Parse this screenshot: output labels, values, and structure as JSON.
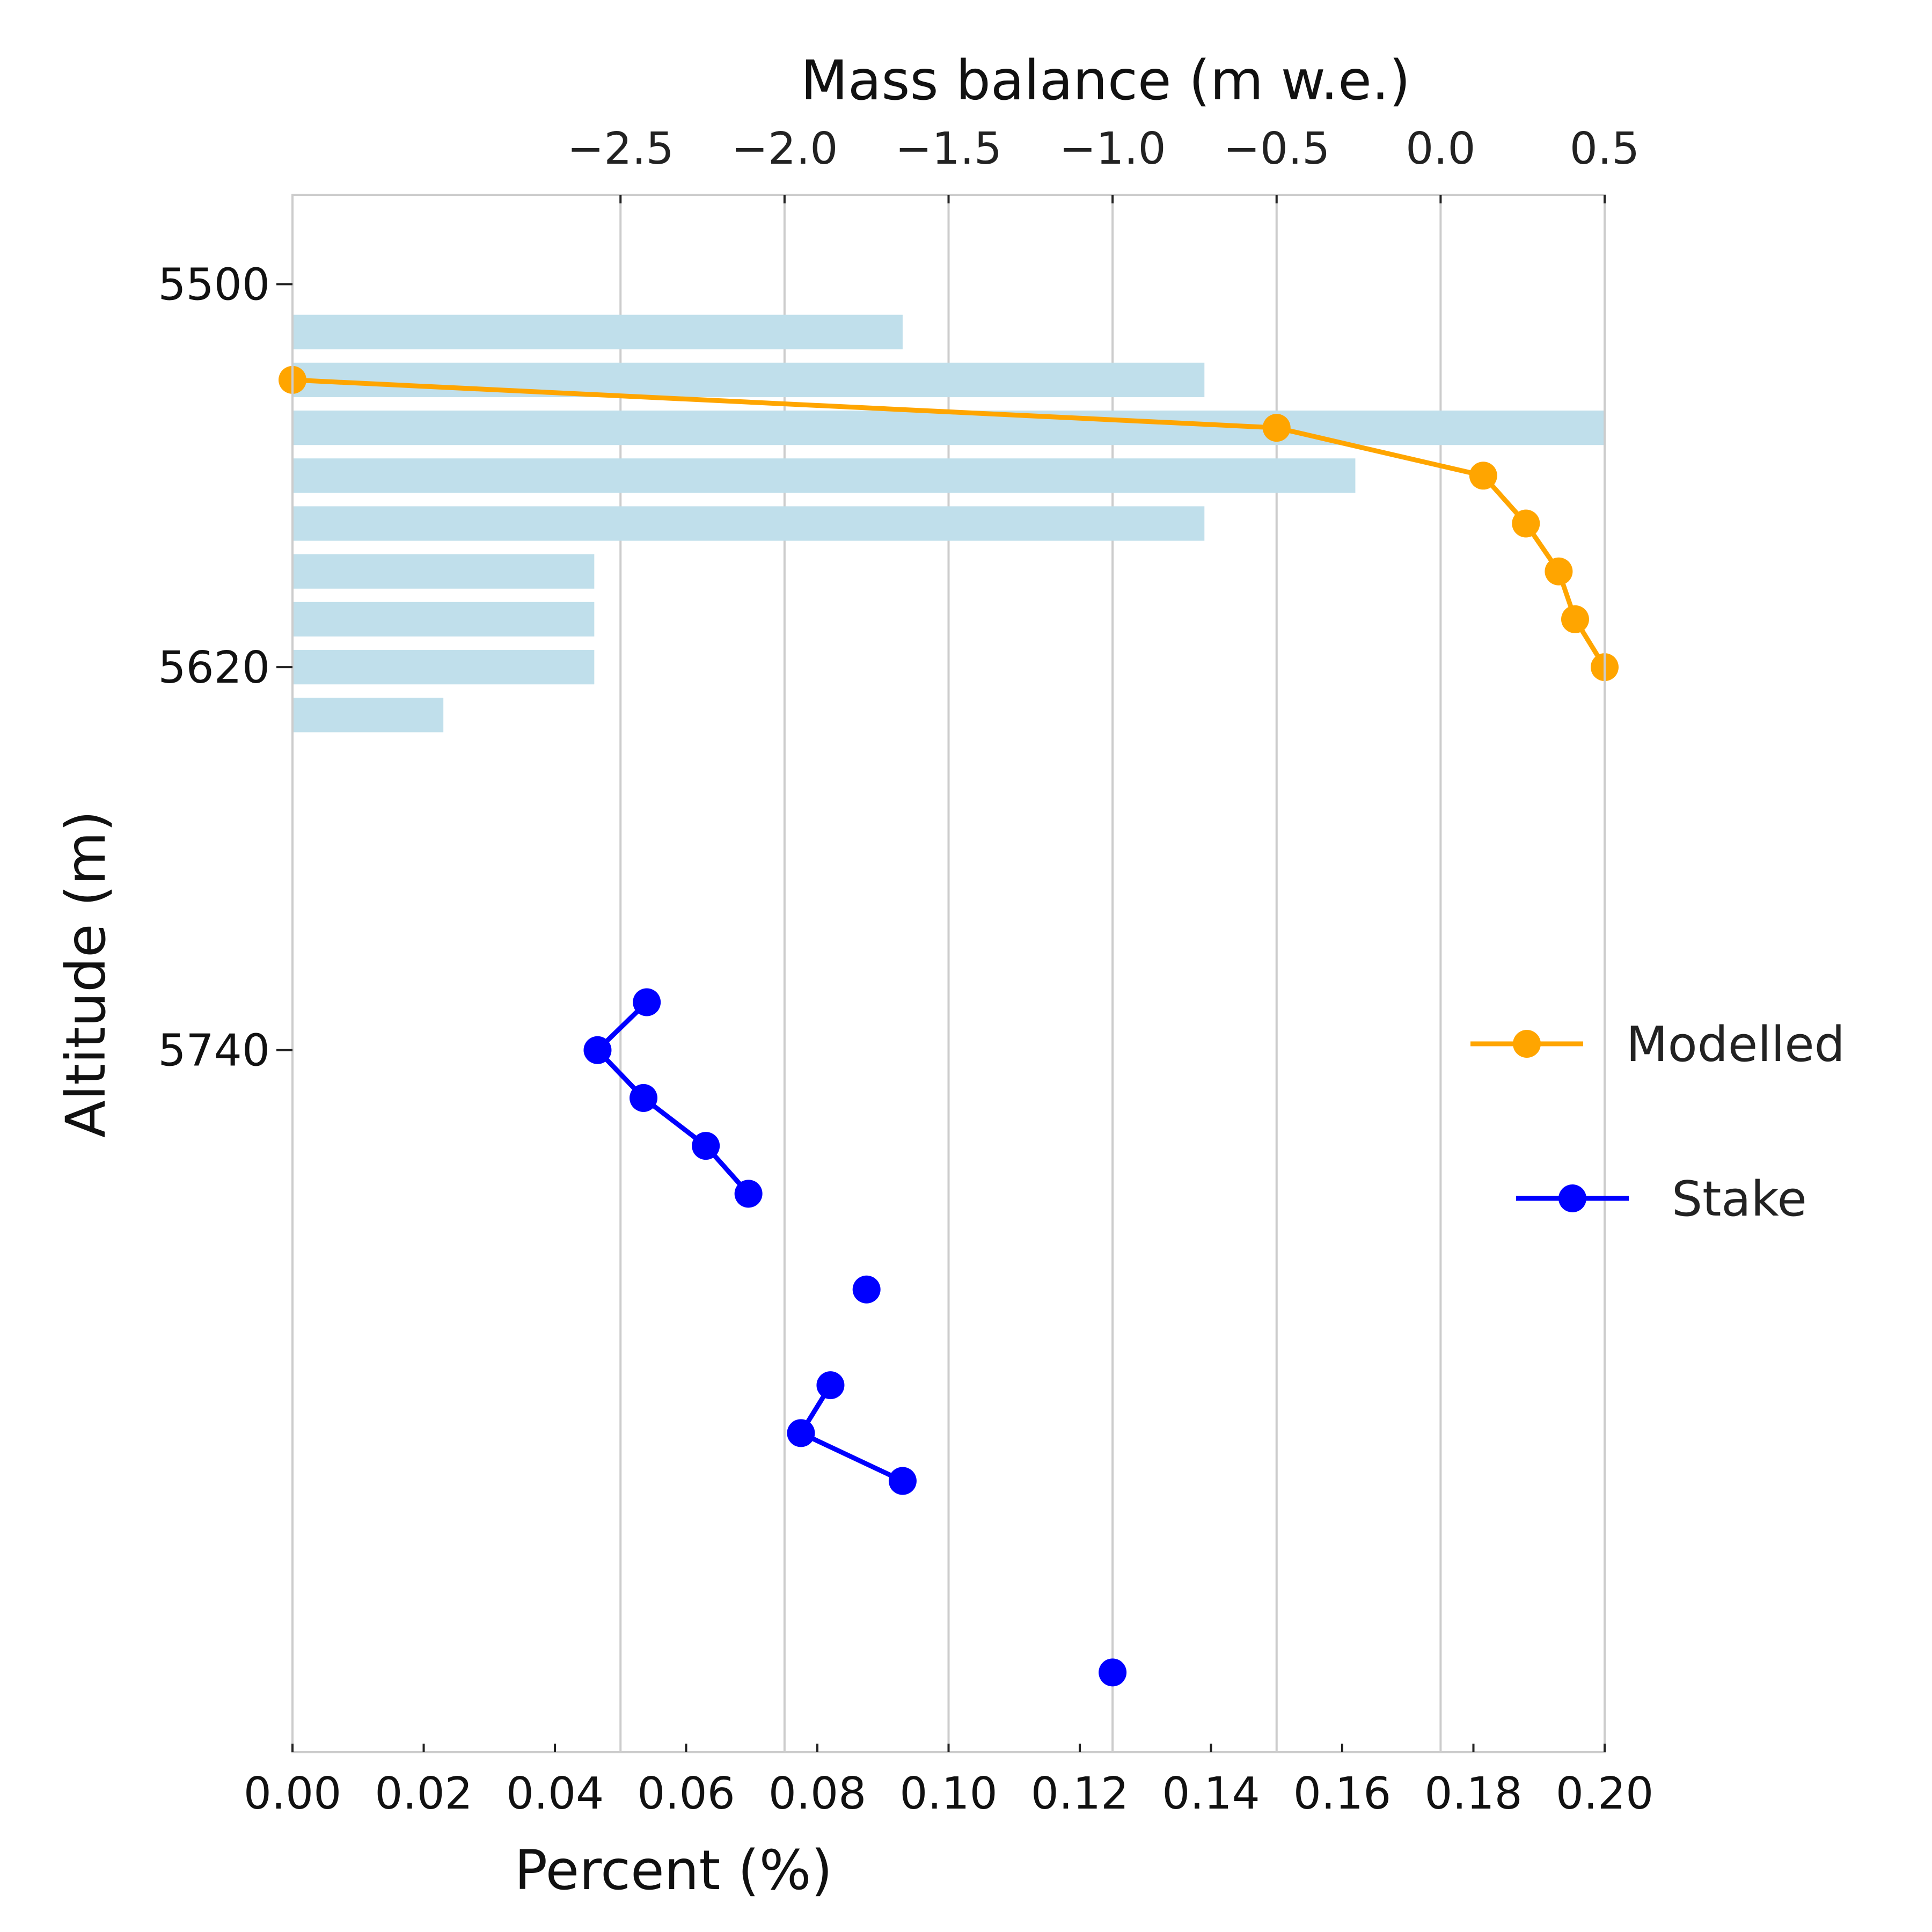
{
  "chart_data": {
    "type": "bar",
    "bottom_axis": {
      "label": "Percent (%)",
      "range": [
        0.0,
        0.2
      ],
      "ticks": [
        "0.00",
        "0.02",
        "0.04",
        "0.06",
        "0.08",
        "0.10",
        "0.12",
        "0.14",
        "0.16",
        "0.18",
        "0.20"
      ],
      "tick_values": [
        0.0,
        0.02,
        0.04,
        0.06,
        0.08,
        0.1,
        0.12,
        0.14,
        0.16,
        0.18,
        0.2
      ]
    },
    "top_axis": {
      "label": "Mass balance (m w.e.)",
      "range": [
        -3.5,
        0.5
      ],
      "ticks": [
        "−2.5",
        "−2.0",
        "−1.5",
        "−1.0",
        "−0.5",
        "0.0",
        "0.5"
      ],
      "tick_values": [
        -2.5,
        -2.0,
        -1.5,
        -1.0,
        -0.5,
        0.0,
        0.5
      ],
      "grid": true
    },
    "y_axis": {
      "label": "Altitude (m)",
      "range": [
        5472,
        5960
      ],
      "inverted": true,
      "ticks": [
        "5500",
        "5620",
        "5740"
      ],
      "tick_values": [
        5500,
        5620,
        5740
      ]
    },
    "bars": {
      "color": "#c0dfeb",
      "altitudes": [
        5515,
        5530,
        5545,
        5560,
        5575,
        5590,
        5605,
        5620,
        5635
      ],
      "values": [
        0.093,
        0.139,
        0.2,
        0.162,
        0.139,
        0.046,
        0.046,
        0.046,
        0.023
      ]
    },
    "series": [
      {
        "name": "Modelled",
        "color": "#ffa500",
        "x": [
          -3.5,
          -0.5,
          0.13,
          0.26,
          0.36,
          0.41,
          0.5
        ],
        "y": [
          5530,
          5545,
          5560,
          5575,
          5590,
          5605,
          5620
        ]
      },
      {
        "name": "Stake",
        "color": "#0000ff",
        "segments": [
          {
            "x": [
              -2.42,
              -2.57,
              -2.43,
              -2.24,
              -2.11
            ],
            "y": [
              5725,
              5740,
              5755,
              5770,
              5785
            ]
          },
          {
            "x": [
              -1.75
            ],
            "y": [
              5815
            ]
          },
          {
            "x": [
              -1.86,
              -1.95,
              -1.64
            ],
            "y": [
              5845,
              5860,
              5875
            ]
          },
          {
            "x": [
              -1.0
            ],
            "y": [
              5935
            ]
          }
        ]
      }
    ],
    "legend": {
      "placement": "center-right",
      "entries": [
        "Modelled",
        "Stake"
      ]
    }
  }
}
